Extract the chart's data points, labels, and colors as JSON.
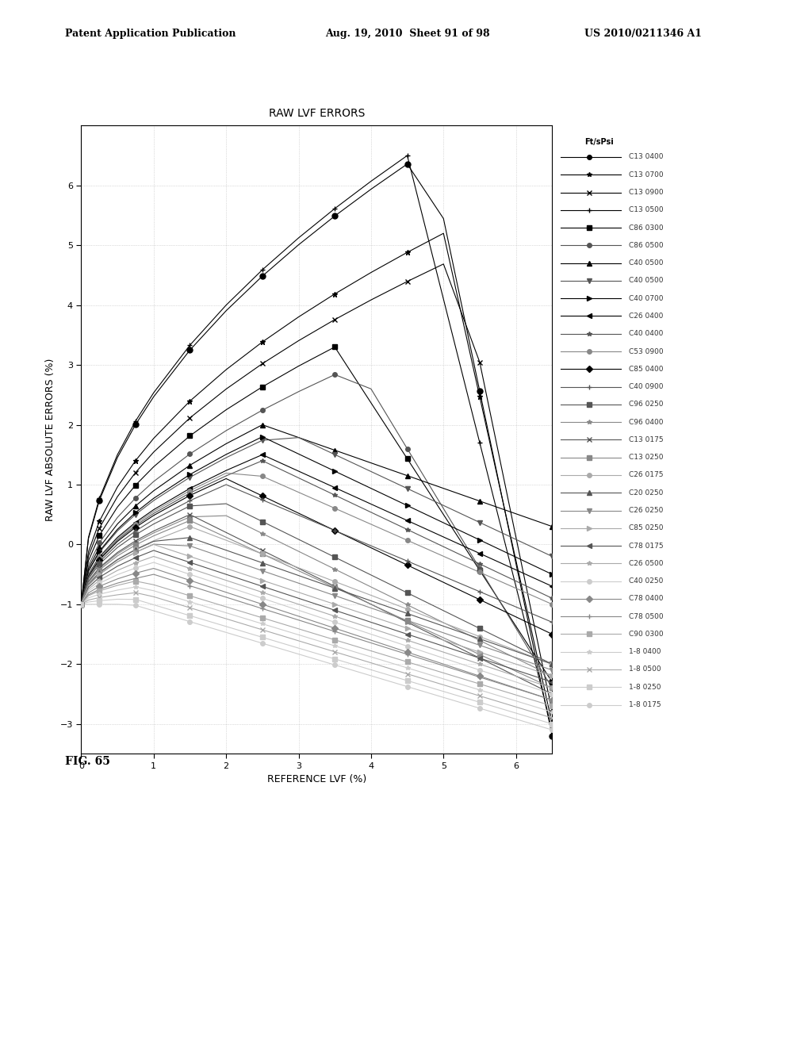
{
  "title": "RAW LVF ERRORS",
  "xlabel": "REFERENCE LVF (%)",
  "ylabel": "RAW LVF ABSOLUTE ERRORS (%)",
  "legend_header": "Ft/sPsi",
  "xlim": [
    0,
    6.5
  ],
  "ylim": [
    -3.5,
    7.0
  ],
  "xticks": [
    0,
    1,
    2,
    3,
    4,
    5,
    6
  ],
  "yticks": [
    -3,
    -2,
    -1,
    0,
    1,
    2,
    3,
    4,
    5,
    6
  ],
  "background_color": "#ffffff",
  "grid_color": "#aaaaaa",
  "series": [
    {
      "label": "C13 0500",
      "marker": "+",
      "color": "#000000",
      "peak": 6.5,
      "peak_x": 4.5,
      "final": -3.1
    },
    {
      "label": "C13 0400",
      "marker": "o",
      "color": "#000000",
      "peak": 6.6,
      "peak_x": 4.8,
      "final": -3.2
    },
    {
      "label": "C13 0700",
      "marker": "*",
      "color": "#000000",
      "peak": 5.2,
      "peak_x": 5.0,
      "final": -3.0
    },
    {
      "label": "C13 0900",
      "marker": "x",
      "color": "#000000",
      "peak": 4.8,
      "peak_x": 5.2,
      "final": -2.8
    },
    {
      "label": "C86 0300",
      "marker": "s",
      "color": "#000000",
      "peak": 3.3,
      "peak_x": 3.5,
      "final": -2.3
    },
    {
      "label": "C86 0500",
      "marker": "o",
      "color": "#555555",
      "peak": 3.0,
      "peak_x": 3.8,
      "final": -2.4
    },
    {
      "label": "C40 0500",
      "marker": "^",
      "color": "#000000",
      "peak": 2.0,
      "peak_x": 2.5,
      "final": 0.3
    },
    {
      "label": "C40 0500",
      "marker": "v",
      "color": "#555555",
      "peak": 1.9,
      "peak_x": 2.8,
      "final": -0.2
    },
    {
      "label": "C40 0700",
      "marker": ">",
      "color": "#000000",
      "peak": 1.8,
      "peak_x": 2.5,
      "final": -0.5
    },
    {
      "label": "C26 0400",
      "marker": "<",
      "color": "#000000",
      "peak": 1.5,
      "peak_x": 2.5,
      "final": -0.7
    },
    {
      "label": "C40 0400",
      "marker": "*",
      "color": "#555555",
      "peak": 1.4,
      "peak_x": 2.5,
      "final": -0.9
    },
    {
      "label": "C53 0900",
      "marker": "o",
      "color": "#888888",
      "peak": 1.3,
      "peak_x": 2.2,
      "final": -1.0
    },
    {
      "label": "C85 0400",
      "marker": "D",
      "color": "#000000",
      "peak": 1.1,
      "peak_x": 2.0,
      "final": -1.5
    },
    {
      "label": "C40 0900",
      "marker": "+",
      "color": "#555555",
      "peak": 1.0,
      "peak_x": 2.0,
      "final": -1.3
    },
    {
      "label": "C96 0250",
      "marker": "s",
      "color": "#555555",
      "peak": 0.8,
      "peak_x": 1.8,
      "final": -2.0
    },
    {
      "label": "C96 0400",
      "marker": "*",
      "color": "#888888",
      "peak": 0.6,
      "peak_x": 1.8,
      "final": -2.2
    },
    {
      "label": "C13 0175",
      "marker": "x",
      "color": "#555555",
      "peak": 0.5,
      "peak_x": 1.5,
      "final": -2.5
    },
    {
      "label": "C13 0250",
      "marker": "s",
      "color": "#888888",
      "peak": 0.4,
      "peak_x": 1.5,
      "final": -2.4
    },
    {
      "label": "C26 0175",
      "marker": "o",
      "color": "#aaaaaa",
      "peak": 0.3,
      "peak_x": 1.5,
      "final": -2.0
    },
    {
      "label": "C20 0250",
      "marker": "^",
      "color": "#555555",
      "peak": 0.2,
      "peak_x": 1.3,
      "final": -2.0
    },
    {
      "label": "C26 0250",
      "marker": "v",
      "color": "#888888",
      "peak": 0.1,
      "peak_x": 1.2,
      "final": -2.1
    },
    {
      "label": "C85 0250",
      "marker": ">",
      "color": "#aaaaaa",
      "peak": 0.0,
      "peak_x": 1.0,
      "final": -2.2
    },
    {
      "label": "C78 0175",
      "marker": "<",
      "color": "#555555",
      "peak": -0.1,
      "peak_x": 1.0,
      "final": -2.3
    },
    {
      "label": "C26 0500",
      "marker": "*",
      "color": "#aaaaaa",
      "peak": -0.2,
      "peak_x": 1.0,
      "final": -2.4
    },
    {
      "label": "C40 0250",
      "marker": "o",
      "color": "#cccccc",
      "peak": -0.3,
      "peak_x": 1.0,
      "final": -2.5
    },
    {
      "label": "C78 0400",
      "marker": "D",
      "color": "#888888",
      "peak": -0.4,
      "peak_x": 1.0,
      "final": -2.6
    },
    {
      "label": "C78 0500",
      "marker": "+",
      "color": "#888888",
      "peak": -0.5,
      "peak_x": 1.0,
      "final": -2.6
    },
    {
      "label": "C90 0300",
      "marker": "s",
      "color": "#aaaaaa",
      "peak": -0.6,
      "peak_x": 0.8,
      "final": -2.7
    },
    {
      "label": "1-8 0400",
      "marker": "*",
      "color": "#cccccc",
      "peak": -0.7,
      "peak_x": 0.8,
      "final": -2.8
    },
    {
      "label": "1-8 0500",
      "marker": "x",
      "color": "#aaaaaa",
      "peak": -0.8,
      "peak_x": 0.8,
      "final": -2.9
    },
    {
      "label": "1-8 0250",
      "marker": "s",
      "color": "#cccccc",
      "peak": -0.9,
      "peak_x": 0.7,
      "final": -3.0
    },
    {
      "label": "1-8 0175",
      "marker": "o",
      "color": "#cccccc",
      "peak": -1.0,
      "peak_x": 0.7,
      "final": -3.1
    }
  ]
}
